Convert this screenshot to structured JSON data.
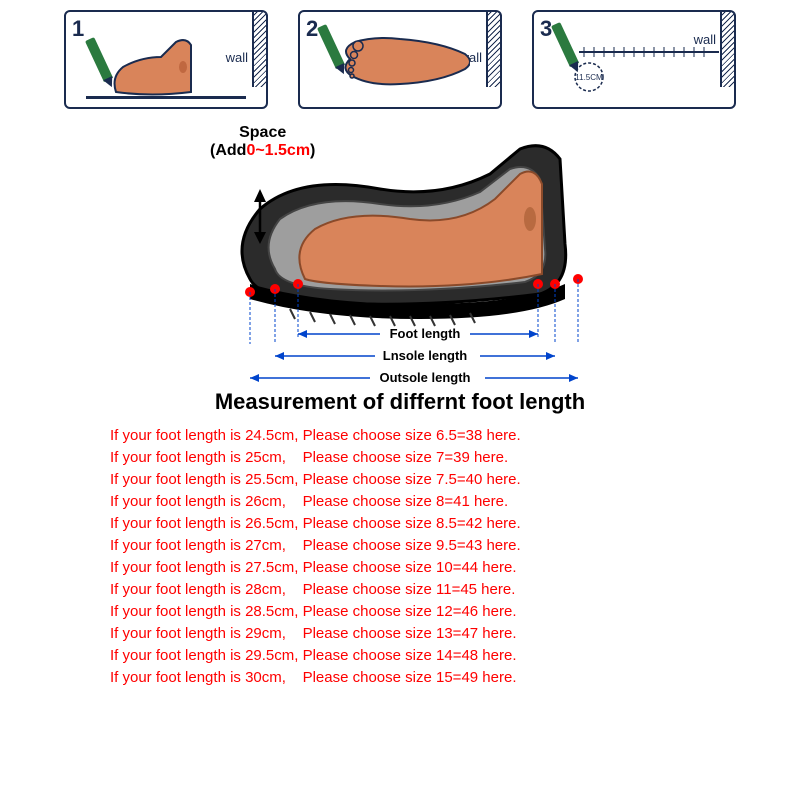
{
  "steps": [
    {
      "num": "1",
      "wall": "wall"
    },
    {
      "num": "2",
      "wall": "wall"
    },
    {
      "num": "3",
      "wall": "wall",
      "ruler_label": "11.5CM"
    }
  ],
  "space": {
    "line1": "Space",
    "line2_prefix": "(Add",
    "line2_value": "0~1.5cm",
    "line2_suffix": ")"
  },
  "dimensions": {
    "foot": "Foot length",
    "insole": "Lnsole length",
    "outsole": "Outsole length"
  },
  "title": "Measurement of differnt foot length",
  "colors": {
    "foot_fill": "#d9845a",
    "foot_stroke": "#1a2b4f",
    "shoe_dark": "#2b2b2b",
    "shoe_light": "#9e9e9e",
    "red_dot": "#ff0000",
    "arrow_blue": "#0044cc",
    "text_red": "#ff0000",
    "pencil_green": "#2b7a3f"
  },
  "sizes": [
    {
      "cm": "24.5cm",
      "pad": 0,
      "size": "6.5=38"
    },
    {
      "cm": "25cm",
      "pad": 3,
      "size": "7=39"
    },
    {
      "cm": "25.5cm",
      "pad": 0,
      "size": "7.5=40"
    },
    {
      "cm": "26cm",
      "pad": 3,
      "size": "8=41"
    },
    {
      "cm": "26.5cm",
      "pad": 0,
      "size": "8.5=42"
    },
    {
      "cm": "27cm",
      "pad": 3,
      "size": "9.5=43"
    },
    {
      "cm": "27.5cm",
      "pad": 0,
      "size": "10=44"
    },
    {
      "cm": "28cm",
      "pad": 3,
      "size": "11=45"
    },
    {
      "cm": "28.5cm",
      "pad": 0,
      "size": "12=46"
    },
    {
      "cm": "29cm",
      "pad": 3,
      "size": "13=47"
    },
    {
      "cm": "29.5cm",
      "pad": 0,
      "size": "14=48"
    },
    {
      "cm": "30cm",
      "pad": 3,
      "size": "15=49"
    }
  ]
}
